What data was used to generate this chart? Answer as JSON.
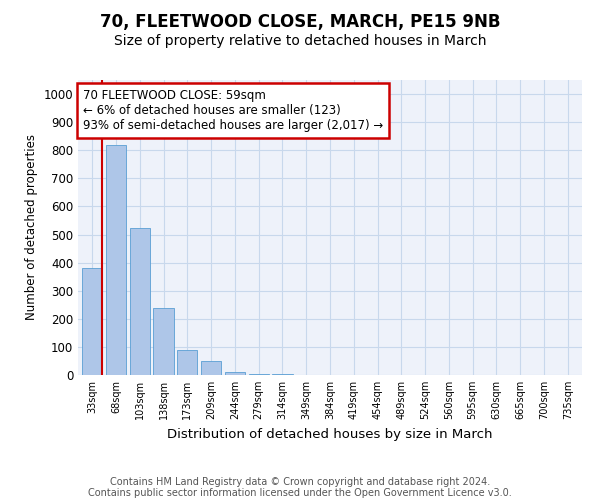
{
  "title": "70, FLEETWOOD CLOSE, MARCH, PE15 9NB",
  "subtitle": "Size of property relative to detached houses in March",
  "xlabel": "Distribution of detached houses by size in March",
  "ylabel": "Number of detached properties",
  "categories": [
    "33sqm",
    "68sqm",
    "103sqm",
    "138sqm",
    "173sqm",
    "209sqm",
    "244sqm",
    "279sqm",
    "314sqm",
    "349sqm",
    "384sqm",
    "419sqm",
    "454sqm",
    "489sqm",
    "524sqm",
    "560sqm",
    "595sqm",
    "630sqm",
    "665sqm",
    "700sqm",
    "735sqm"
  ],
  "values": [
    380,
    820,
    525,
    240,
    90,
    50,
    10,
    4,
    2,
    1,
    0,
    0,
    0,
    0,
    0,
    0,
    0,
    0,
    0,
    0,
    0
  ],
  "bar_color": "#aec6e8",
  "bar_edge_color": "#5a9fd4",
  "annotation_line1": "70 FLEETWOOD CLOSE: 59sqm",
  "annotation_line2": "← 6% of detached houses are smaller (123)",
  "annotation_line3": "93% of semi-detached houses are larger (2,017) →",
  "annotation_box_color": "#cc0000",
  "ylim": [
    0,
    1050
  ],
  "yticks": [
    0,
    100,
    200,
    300,
    400,
    500,
    600,
    700,
    800,
    900,
    1000
  ],
  "grid_color": "#c8d8ec",
  "background_color": "#eef2fa",
  "footer": "Contains HM Land Registry data © Crown copyright and database right 2024.\nContains public sector information licensed under the Open Government Licence v3.0.",
  "title_fontsize": 12,
  "subtitle_fontsize": 10,
  "vline_color": "#cc0000",
  "vline_x": 0.425
}
